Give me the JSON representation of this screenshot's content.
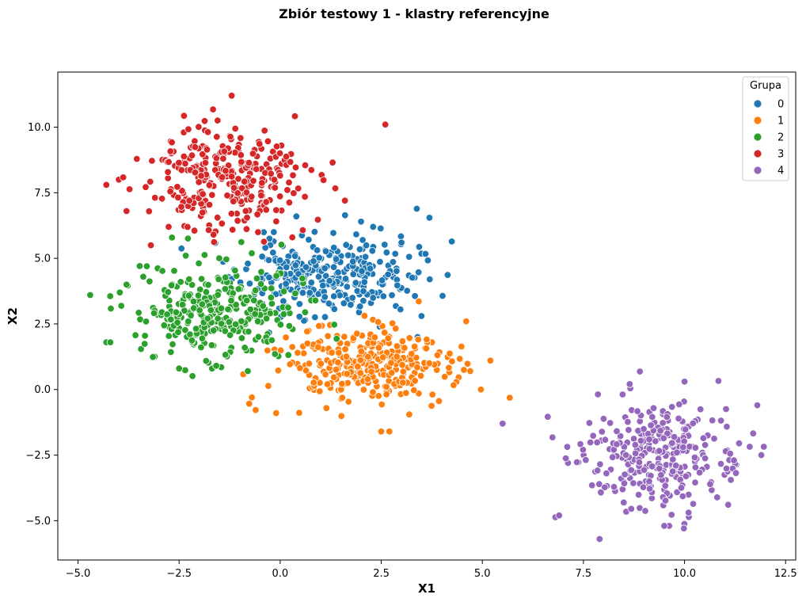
{
  "chart_data": {
    "type": "scatter",
    "title": "Zbiór testowy 1 - klastry referencyjne",
    "xlabel": "X1",
    "ylabel": "X2",
    "xlim": [
      -5.5,
      12.75
    ],
    "ylim": [
      -6.5,
      12.1
    ],
    "xticks": [
      -5.0,
      -2.5,
      0.0,
      2.5,
      5.0,
      7.5,
      10.0,
      12.5
    ],
    "xtick_labels": [
      "−5.0",
      "−2.5",
      "0.0",
      "2.5",
      "5.0",
      "7.5",
      "10.0",
      "12.5"
    ],
    "yticks": [
      -5.0,
      -2.5,
      0.0,
      2.5,
      5.0,
      7.5,
      10.0
    ],
    "ytick_labels": [
      "−5.0",
      "−2.5",
      "0.0",
      "2.5",
      "5.0",
      "7.5",
      "10.0"
    ],
    "grid": false,
    "legend": {
      "title": "Grupa",
      "position": "top-right"
    },
    "series": [
      {
        "name": "0",
        "color": "#1f77b4",
        "center": [
          1.2,
          4.3
        ],
        "spread": [
          1.05,
          0.75
        ],
        "count": 300,
        "seed": 11,
        "extra_points": [
          [
            0.4,
            6.6
          ],
          [
            2.3,
            6.2
          ],
          [
            3.7,
            4.2
          ],
          [
            3.0,
            5.6
          ],
          [
            -0.8,
            4.8
          ],
          [
            3.4,
            2.0
          ],
          [
            2.0,
            6.4
          ]
        ]
      },
      {
        "name": "1",
        "color": "#ff7f0e",
        "center": [
          2.1,
          0.9
        ],
        "spread": [
          1.05,
          0.75
        ],
        "count": 300,
        "seed": 23,
        "extra_points": [
          [
            5.2,
            1.1
          ],
          [
            -0.7,
            -0.3
          ],
          [
            4.6,
            2.6
          ],
          [
            2.5,
            -1.6
          ],
          [
            2.7,
            -1.6
          ],
          [
            4.7,
            0.7
          ],
          [
            -0.1,
            -0.9
          ]
        ]
      },
      {
        "name": "2",
        "color": "#2ca02c",
        "center": [
          -1.5,
          3.0
        ],
        "spread": [
          1.0,
          0.9
        ],
        "count": 300,
        "seed": 37,
        "extra_points": [
          [
            -4.7,
            3.6
          ],
          [
            -4.3,
            1.8
          ],
          [
            -3.8,
            4.0
          ],
          [
            -3.3,
            4.7
          ],
          [
            -2.5,
            0.8
          ],
          [
            -0.8,
            0.7
          ],
          [
            -4.2,
            1.8
          ]
        ]
      },
      {
        "name": "3",
        "color": "#d62728",
        "center": [
          -1.4,
          7.9
        ],
        "spread": [
          0.95,
          0.95
        ],
        "count": 300,
        "seed": 51,
        "extra_points": [
          [
            -1.2,
            11.2
          ],
          [
            2.6,
            10.1
          ],
          [
            -4.3,
            7.8
          ],
          [
            -3.8,
            6.8
          ],
          [
            -3.2,
            5.5
          ],
          [
            1.6,
            7.2
          ],
          [
            0.3,
            5.8
          ]
        ]
      },
      {
        "name": "4",
        "color": "#9467bd",
        "center": [
          9.3,
          -2.5
        ],
        "spread": [
          1.0,
          1.0
        ],
        "count": 300,
        "seed": 67,
        "extra_points": [
          [
            5.5,
            -1.3
          ],
          [
            6.9,
            -4.8
          ],
          [
            7.9,
            -5.7
          ],
          [
            11.8,
            -0.6
          ],
          [
            9.5,
            -5.2
          ],
          [
            10.0,
            0.3
          ],
          [
            11.9,
            -2.5
          ]
        ]
      }
    ]
  }
}
